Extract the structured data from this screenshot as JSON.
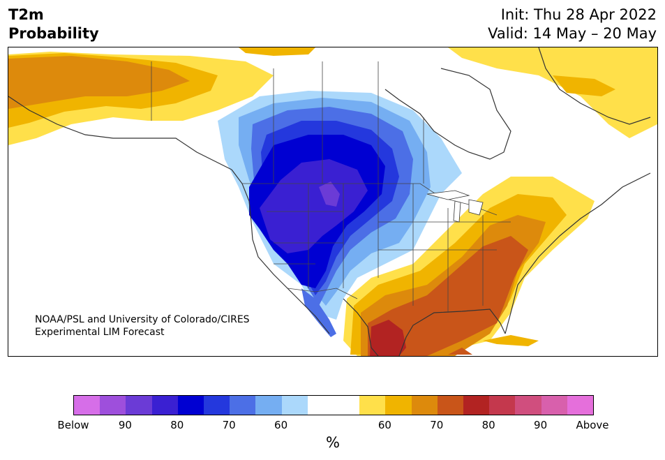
{
  "header": {
    "title_line1": "T2m",
    "title_line2": "Probability",
    "init": "Init: Thu 28 Apr 2022",
    "valid": "Valid: 14 May – 20 May"
  },
  "credit": {
    "line1": "NOAA/PSL and University of Colorado/CIRES",
    "line2": "Experimental LIM Forecast"
  },
  "colorbar": {
    "colors": [
      "#d66ee8",
      "#9e4fdc",
      "#6b3bd6",
      "#3a20d2",
      "#0000d2",
      "#2438dd",
      "#4c6fe6",
      "#75aef2",
      "#abd8fb",
      "#ffffff",
      "#ffffff",
      "#ffe04a",
      "#f0b400",
      "#dd8a0c",
      "#c95519",
      "#b22322",
      "#c4384d",
      "#d04e7e",
      "#d860ac",
      "#e56fdb"
    ],
    "ticks": [
      "Below",
      "90",
      "80",
      "70",
      "60",
      "60",
      "70",
      "80",
      "90",
      "Above"
    ],
    "units": "%"
  }
}
